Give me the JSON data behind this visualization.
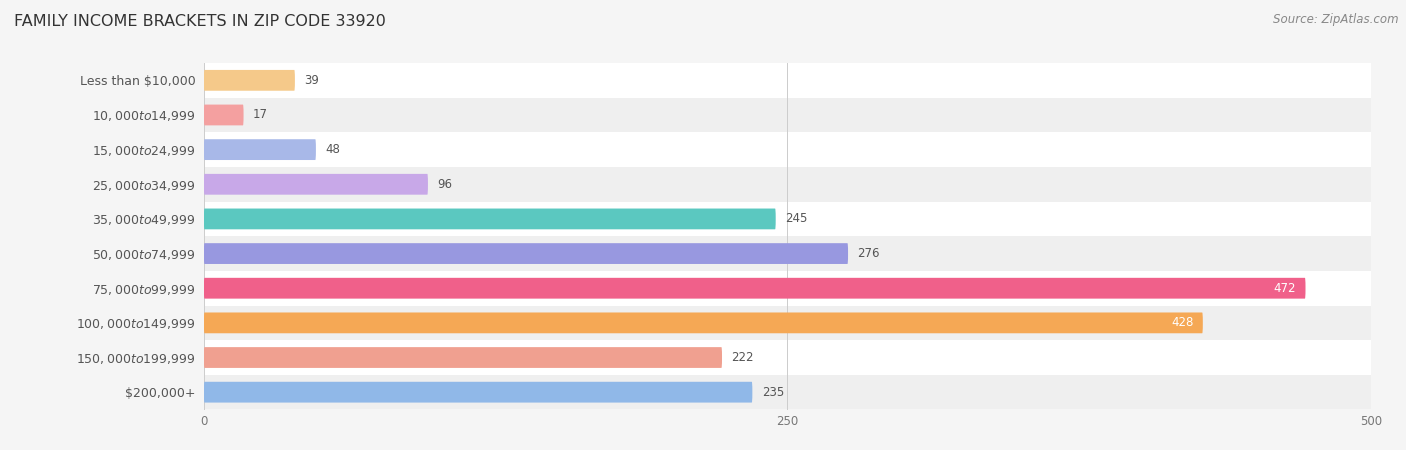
{
  "title": "FAMILY INCOME BRACKETS IN ZIP CODE 33920",
  "source": "Source: ZipAtlas.com",
  "categories": [
    "Less than $10,000",
    "$10,000 to $14,999",
    "$15,000 to $24,999",
    "$25,000 to $34,999",
    "$35,000 to $49,999",
    "$50,000 to $74,999",
    "$75,000 to $99,999",
    "$100,000 to $149,999",
    "$150,000 to $199,999",
    "$200,000+"
  ],
  "values": [
    39,
    17,
    48,
    96,
    245,
    276,
    472,
    428,
    222,
    235
  ],
  "colors": [
    "#F5C98A",
    "#F4A0A0",
    "#A8B8E8",
    "#C8A8E8",
    "#5BC8C0",
    "#9898E0",
    "#F0608A",
    "#F5A855",
    "#F0A090",
    "#90B8E8"
  ],
  "xlim": [
    0,
    500
  ],
  "xticks": [
    0,
    250,
    500
  ],
  "bar_height": 0.6,
  "background_color": "#f5f5f5",
  "row_bg_light": "#ffffff",
  "row_bg_dark": "#efefef",
  "title_fontsize": 11.5,
  "label_fontsize": 9,
  "value_fontsize": 8.5,
  "source_fontsize": 8.5,
  "label_color": "#555555",
  "value_color_dark": "#555555",
  "value_color_light": "#ffffff"
}
